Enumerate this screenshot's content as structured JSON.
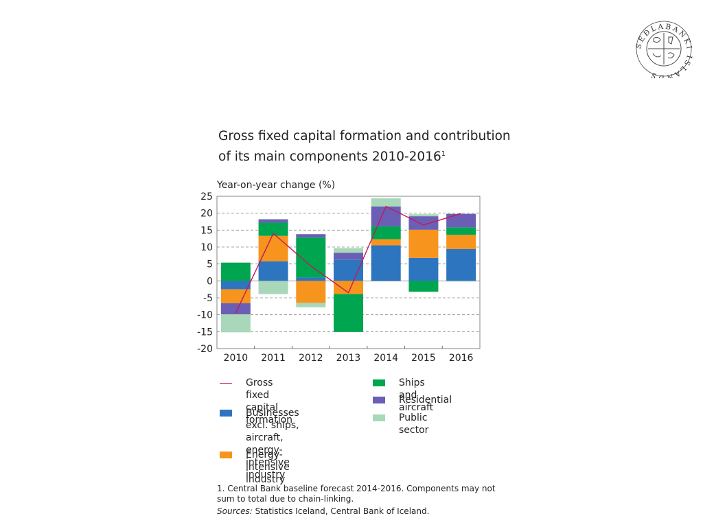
{
  "title_line1": "Gross fixed capital formation and contribution",
  "title_line2": "of its main components 2010-2016",
  "title_footnote_mark": "1",
  "seal_text": "SEÐLABANKI ÍSLANDS",
  "colors": {
    "businesses": "#2e75c0",
    "energy": "#f7941d",
    "ships": "#00a550",
    "residential": "#6b5fb5",
    "public": "#a8d8b9",
    "gfcf_line": "#c2185b"
  },
  "chart_data": {
    "type": "bar",
    "stacked": true,
    "ylabel": "Year-on-year change (%)",
    "ylim": [
      -20,
      25
    ],
    "yticks": [
      25,
      20,
      15,
      10,
      5,
      0,
      -5,
      -10,
      -15,
      -20
    ],
    "grid": "dashed horizontal",
    "categories": [
      "2010",
      "2011",
      "2012",
      "2013",
      "2014",
      "2015",
      "2016"
    ],
    "series": [
      {
        "name": "Businesses excl. ships, aircraft, energy-intensive industry",
        "key": "businesses",
        "values": [
          -2.5,
          5.8,
          1.0,
          6.3,
          10.5,
          6.8,
          9.4
        ]
      },
      {
        "name": "Energy-intensive industry",
        "key": "energy",
        "values": [
          -4.1,
          7.5,
          -6.5,
          -3.9,
          1.8,
          8.3,
          4.2
        ]
      },
      {
        "name": "Ships and aircraft",
        "key": "ships",
        "values": [
          5.4,
          3.9,
          11.8,
          -11.2,
          3.8,
          -3.2,
          2.2
        ]
      },
      {
        "name": "Residential",
        "key": "residential",
        "values": [
          -3.3,
          1.0,
          1.0,
          2.0,
          5.9,
          4.0,
          4.0
        ]
      },
      {
        "name": "Public sector",
        "key": "public",
        "values": [
          -5.3,
          -3.9,
          -1.3,
          1.4,
          2.4,
          0.6,
          -0.2
        ]
      }
    ],
    "line": {
      "name": "Gross fixed capital formation",
      "key": "gfcf_line",
      "values": [
        -9.5,
        14.0,
        4.4,
        -3.5,
        22.0,
        16.5,
        19.9
      ]
    },
    "legend": [
      {
        "label": "Gross fixed capital formation",
        "line2": "formation",
        "kind": "line",
        "key": "gfcf_line"
      },
      {
        "label": "Businesses excl. ships,",
        "kind": "bar",
        "key": "businesses"
      },
      {
        "label": "Energy-intensive industry",
        "kind": "bar",
        "key": "energy"
      },
      {
        "label": "Ships and aircraft",
        "kind": "bar",
        "key": "ships"
      },
      {
        "label": "Residential",
        "kind": "bar",
        "key": "residential"
      },
      {
        "label": "Public sector",
        "kind": "bar",
        "key": "public"
      }
    ]
  },
  "legend_text": {
    "gfcf": "Gross fixed capital\nformation",
    "businesses": "Businesses excl. ships,\naircraft, energy-intensive\nindustry",
    "energy": "Energy-intensive industry",
    "ships": "Ships and aircraft",
    "residential": "Residential",
    "public": "Public sector"
  },
  "note": "1. Central Bank baseline forecast 2014-2016. Components may not sum to total due to chain-linking.",
  "sources_label": "Sources:",
  "sources_text": " Statistics Iceland, Central Bank of Iceland."
}
